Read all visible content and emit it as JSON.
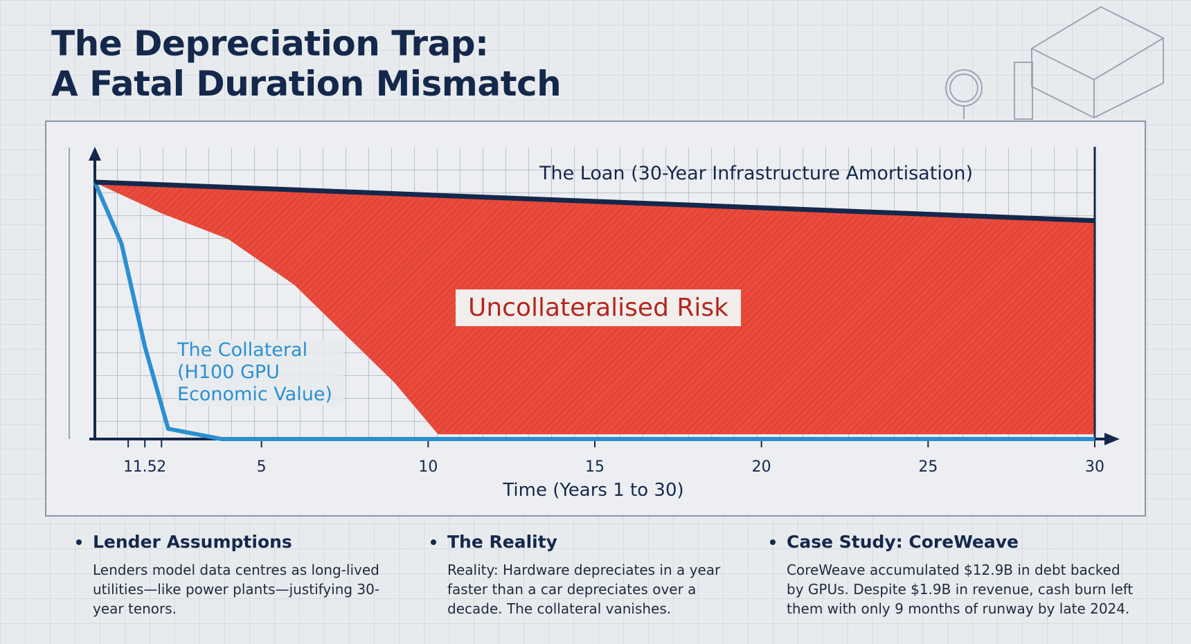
{
  "header": {
    "title_lines": [
      "The Depreciation Trap:",
      "A Fatal Duration Mismatch"
    ]
  },
  "chart_data": {
    "type": "line",
    "x_label": "Time (Years 1 to 30)",
    "xlim": [
      0,
      30
    ],
    "xticks": [
      1,
      1.5,
      2,
      5,
      10,
      15,
      20,
      25,
      30
    ],
    "ylim": [
      0,
      100
    ],
    "series": [
      {
        "name": "The Loan (30-Year Infrastructure Amortisation)",
        "color": "#14284b",
        "x": [
          0,
          30
        ],
        "values": [
          100,
          85
        ]
      },
      {
        "name": "The Collateral (H100 GPU Economic Value)",
        "color": "#2b8fd0",
        "x": [
          0,
          0.8,
          1.5,
          2.2,
          3.8,
          30
        ],
        "values": [
          100,
          76,
          36,
          4,
          0,
          0
        ]
      },
      {
        "name": "Uncollateralised Risk",
        "color": "#e8453a",
        "fill_between": "upper series 0",
        "x": [
          0,
          2,
          4,
          6,
          7.5,
          9,
          10.3,
          30
        ],
        "values": [
          100,
          88,
          78,
          60,
          41,
          22,
          2,
          2
        ]
      }
    ]
  },
  "notes": [
    {
      "heading": "Lender Assumptions",
      "text": "Lenders model data centres as long-lived utilities—like power plants—justifying 30-year tenors."
    },
    {
      "heading": "The Reality",
      "text": "Reality: Hardware depreciates in a year faster than a car depreciates over a decade. The collateral vanishes."
    },
    {
      "heading": "Case Study: CoreWeave",
      "text": "CoreWeave accumulated $12.9B in debt backed by GPUs. Despite $1.9B in revenue, cash burn left them with only 9 months of runway by late 2024."
    }
  ]
}
